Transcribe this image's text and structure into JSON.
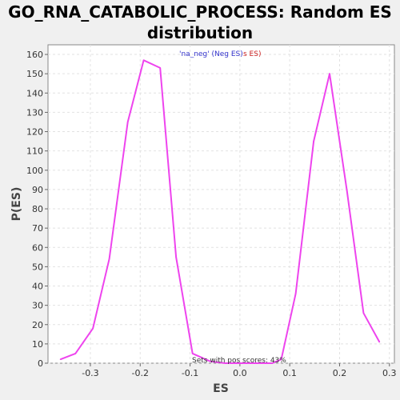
{
  "chart_data": {
    "type": "line",
    "title_line1": "GO_RNA_CATABOLIC_PROCESS: Random ES",
    "title_line2": "distribution",
    "xlabel": "ES",
    "ylabel": "P(ES)",
    "xlim": [
      -0.385,
      0.31
    ],
    "ylim": [
      0,
      165
    ],
    "xticks": [
      -0.3,
      -0.2,
      -0.1,
      0.0,
      0.1,
      0.2,
      0.3
    ],
    "xtick_labels": [
      "-0.3",
      "-0.2",
      "-0.1",
      "0.0",
      "0.1",
      "0.2",
      "0.3"
    ],
    "yticks": [
      0,
      10,
      20,
      30,
      40,
      50,
      60,
      70,
      80,
      90,
      100,
      110,
      120,
      130,
      140,
      150,
      160
    ],
    "grid": true,
    "legend": {
      "placement": "top-center",
      "neg_label": "'na_neg' (Neg ES)",
      "pos_label": "s ES)",
      "neg_color": "#3333cc",
      "pos_color": "#cc2222"
    },
    "annotation": "Sets with pos scores: 43%",
    "series": [
      {
        "color": "#ee44ee",
        "x": [
          -0.36,
          -0.33,
          -0.295,
          -0.262,
          -0.225,
          -0.193,
          -0.16,
          -0.128,
          -0.095,
          -0.06,
          -0.03,
          0.0,
          0.03,
          0.065,
          0.083,
          0.112,
          0.148,
          0.18,
          0.215,
          0.248,
          0.28
        ],
        "y": [
          2,
          5,
          18,
          54,
          125,
          157,
          153,
          55,
          5,
          1,
          0,
          0,
          0,
          0,
          2,
          36,
          115,
          150,
          89,
          26,
          11
        ]
      }
    ]
  }
}
